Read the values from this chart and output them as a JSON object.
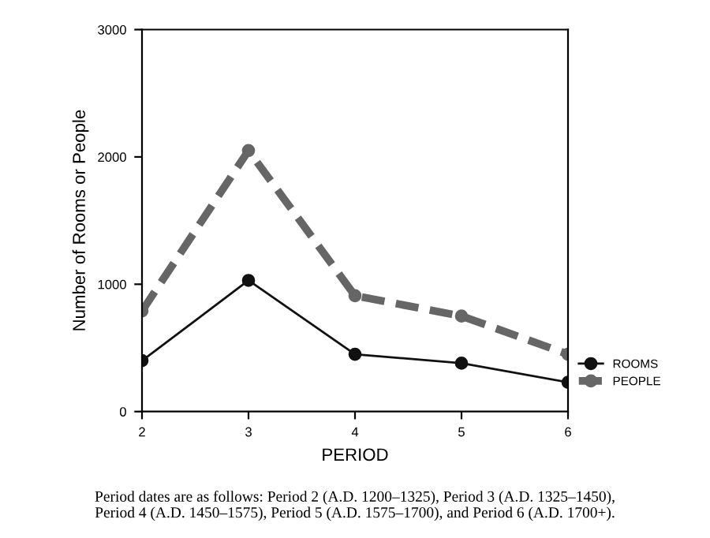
{
  "chart_data": {
    "type": "line",
    "xlabel": "PERIOD",
    "ylabel": "Number of Rooms or People",
    "x": [
      2,
      3,
      4,
      5,
      6
    ],
    "series": [
      {
        "name": "ROOMS",
        "color": "#111111",
        "line_style": "solid",
        "values": [
          400,
          1030,
          450,
          380,
          230
        ]
      },
      {
        "name": "PEOPLE",
        "color": "#666666",
        "line_style": "dashed",
        "values": [
          790,
          2050,
          910,
          750,
          450
        ]
      }
    ],
    "xlim": [
      2,
      6
    ],
    "xticks": [
      2,
      3,
      4,
      5,
      6
    ],
    "ylim": [
      0,
      3000
    ],
    "yticks": [
      0,
      1000,
      2000,
      3000
    ],
    "marker": "circle",
    "grid": false,
    "legend": "right",
    "annotations": [
      "Period dates are as follows: Period 2 (A.D. 1200–1325), Period 3 (A.D. 1325–1450),\nPeriod 4 (A.D. 1450–1575), Period 5 (A.D. 1575–1700), and Period 6 (A.D. 1700+)."
    ]
  }
}
